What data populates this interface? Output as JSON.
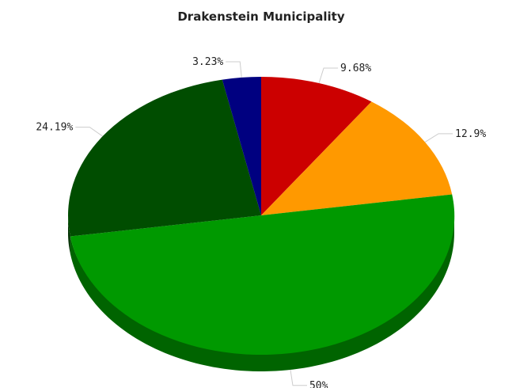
{
  "chart_data": {
    "type": "pie",
    "title": "Drakenstein Municipality",
    "slices": [
      {
        "value": 9.68,
        "label": "9.68%",
        "color": "#cc0000",
        "side_color": "#8a0000"
      },
      {
        "value": 12.9,
        "label": "12.9%",
        "color": "#ff9900",
        "side_color": "#b36b00"
      },
      {
        "value": 50,
        "label": "50%",
        "color": "#009900",
        "side_color": "#006400"
      },
      {
        "value": 24.19,
        "label": "24.19%",
        "color": "#004d00",
        "side_color": "#003000"
      },
      {
        "value": 3.23,
        "label": "3.23%",
        "color": "#000080",
        "side_color": "#000050"
      }
    ],
    "start_angle": "top",
    "direction": "clockwise",
    "style": "3d"
  }
}
